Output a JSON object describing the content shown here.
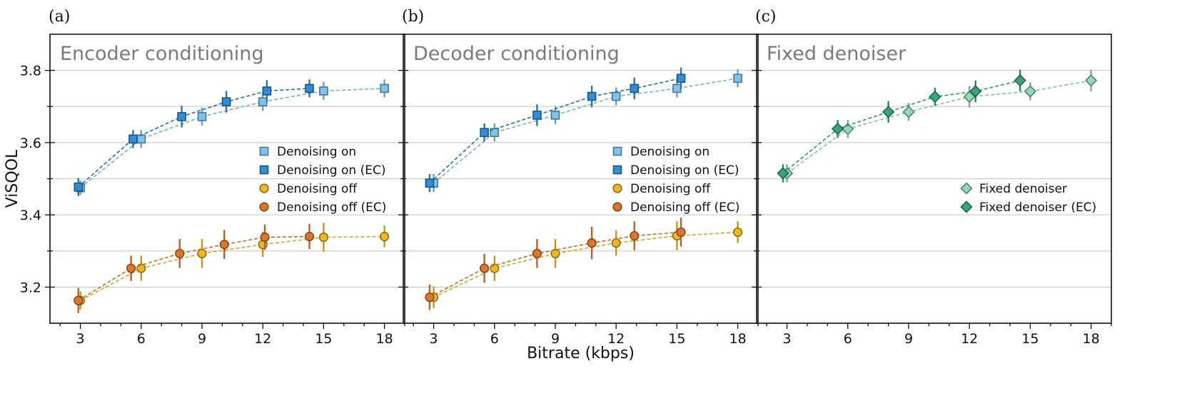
{
  "colors": {
    "light_blue": "#7ec3ee",
    "blue": "#2f8fd6",
    "dark_blue_line": "#1f6fb0",
    "yellow": "#f0b81c",
    "orange": "#e0762a",
    "light_green": "#8fd9b6",
    "green": "#35a77a",
    "grid": "#cfcfcf"
  },
  "chart_data": [
    {
      "type": "scatter",
      "letter": "(a)",
      "title": "Encoder conditioning",
      "xlabel": "",
      "ylabel": "ViSQOL",
      "xlim": [
        1.5,
        19
      ],
      "ylim": [
        3.1,
        3.9
      ],
      "xticks": [
        3,
        6,
        9,
        12,
        15,
        18
      ],
      "xtick_labels": [
        "3",
        "6",
        "9",
        "12",
        "15",
        "18"
      ],
      "yticks": [
        3.2,
        3.4,
        3.6,
        3.8
      ],
      "ytick_labels": [
        "3.2",
        "3.4",
        "3.6",
        "3.8"
      ],
      "grid": true,
      "legend_position": "center-right",
      "series": [
        {
          "name": "Denoising on",
          "marker": "square",
          "color": "light_blue",
          "x": [
            3,
            6,
            9,
            12,
            15,
            18
          ],
          "y": [
            3.475,
            3.61,
            3.672,
            3.713,
            3.743,
            3.75
          ],
          "err": [
            0.02,
            0.025,
            0.025,
            0.025,
            0.025,
            0.025
          ]
        },
        {
          "name": "Denoising on (EC)",
          "marker": "square",
          "color": "blue",
          "x": [
            2.9,
            5.6,
            8.0,
            10.2,
            12.2,
            14.3
          ],
          "y": [
            3.477,
            3.61,
            3.672,
            3.713,
            3.743,
            3.75
          ],
          "err": [
            0.025,
            0.025,
            0.03,
            0.03,
            0.03,
            0.025
          ]
        },
        {
          "name": "Denoising off",
          "marker": "circle",
          "color": "yellow",
          "x": [
            3,
            6,
            9,
            12,
            15,
            18
          ],
          "y": [
            3.163,
            3.252,
            3.293,
            3.318,
            3.338,
            3.34
          ],
          "err": [
            0.025,
            0.035,
            0.04,
            0.035,
            0.04,
            0.03
          ]
        },
        {
          "name": "Denoising off (EC)",
          "marker": "circle",
          "color": "orange",
          "x": [
            2.9,
            5.5,
            7.9,
            10.1,
            12.1,
            14.3
          ],
          "y": [
            3.163,
            3.252,
            3.293,
            3.318,
            3.338,
            3.34
          ],
          "err": [
            0.035,
            0.035,
            0.04,
            0.04,
            0.035,
            0.035
          ]
        }
      ]
    },
    {
      "type": "scatter",
      "letter": "(b)",
      "title": "Decoder conditioning",
      "xlabel": "Bitrate (kbps)",
      "ylabel": "",
      "xlim": [
        1.5,
        19
      ],
      "ylim": [
        3.1,
        3.9
      ],
      "xticks": [
        3,
        6,
        9,
        12,
        15,
        18
      ],
      "xtick_labels": [
        "3",
        "6",
        "9",
        "12",
        "15",
        "18"
      ],
      "yticks": [
        3.2,
        3.4,
        3.6,
        3.8
      ],
      "ytick_labels": [],
      "grid": true,
      "legend_position": "center-right",
      "series": [
        {
          "name": "Denoising on",
          "marker": "square",
          "color": "light_blue",
          "x": [
            3,
            6,
            9,
            12,
            15,
            18
          ],
          "y": [
            3.488,
            3.628,
            3.676,
            3.728,
            3.75,
            3.778
          ],
          "err": [
            0.025,
            0.025,
            0.025,
            0.025,
            0.025,
            0.025
          ]
        },
        {
          "name": "Denoising on (EC)",
          "marker": "square",
          "color": "blue",
          "x": [
            2.8,
            5.5,
            8.1,
            10.8,
            12.9,
            15.2
          ],
          "y": [
            3.488,
            3.628,
            3.676,
            3.728,
            3.75,
            3.778
          ],
          "err": [
            0.025,
            0.025,
            0.03,
            0.03,
            0.03,
            0.03
          ]
        },
        {
          "name": "Denoising off",
          "marker": "circle",
          "color": "yellow",
          "x": [
            3,
            6,
            9,
            12,
            15,
            18
          ],
          "y": [
            3.172,
            3.252,
            3.293,
            3.322,
            3.342,
            3.352
          ],
          "err": [
            0.03,
            0.035,
            0.04,
            0.035,
            0.04,
            0.03
          ]
        },
        {
          "name": "Denoising off (EC)",
          "marker": "circle",
          "color": "orange",
          "x": [
            2.8,
            5.5,
            8.1,
            10.8,
            12.9,
            15.2
          ],
          "y": [
            3.172,
            3.252,
            3.293,
            3.322,
            3.342,
            3.352
          ],
          "err": [
            0.035,
            0.04,
            0.04,
            0.045,
            0.04,
            0.04
          ]
        }
      ]
    },
    {
      "type": "scatter",
      "letter": "(c)",
      "title": "Fixed denoiser",
      "xlabel": "",
      "ylabel": "",
      "xlim": [
        1.5,
        19
      ],
      "ylim": [
        3.1,
        3.9
      ],
      "xticks": [
        3,
        6,
        9,
        12,
        15,
        18
      ],
      "xtick_labels": [
        "3",
        "6",
        "9",
        "12",
        "15",
        "18"
      ],
      "yticks": [
        3.2,
        3.4,
        3.6,
        3.8
      ],
      "ytick_labels": [],
      "grid": true,
      "legend_position": "center-right",
      "series": [
        {
          "name": "Fixed denoiser",
          "marker": "diamond",
          "color": "light_green",
          "x": [
            3,
            6,
            9,
            12,
            15,
            18
          ],
          "y": [
            3.515,
            3.638,
            3.685,
            3.727,
            3.742,
            3.772
          ],
          "err": [
            0.025,
            0.025,
            0.025,
            0.03,
            0.025,
            0.03
          ]
        },
        {
          "name": "Fixed denoiser (EC)",
          "marker": "diamond",
          "color": "green",
          "x": [
            2.8,
            5.5,
            8.0,
            10.3,
            12.3,
            14.5
          ],
          "y": [
            3.515,
            3.638,
            3.685,
            3.727,
            3.742,
            3.772
          ],
          "err": [
            0.025,
            0.025,
            0.03,
            0.025,
            0.03,
            0.03
          ]
        }
      ]
    }
  ]
}
